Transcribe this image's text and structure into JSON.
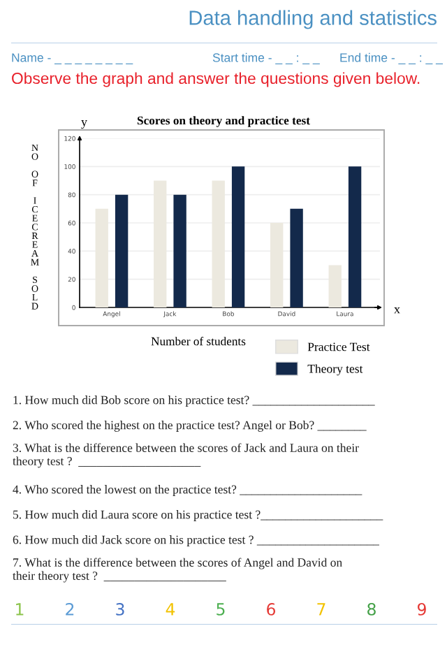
{
  "chart_data": {
    "type": "bar",
    "title": "Scores on theory and practice test",
    "xlabel": "Number of students",
    "ylabel": "NO OF ICECREAM SOLD",
    "categories": [
      "Angel",
      "Jack",
      "Bob",
      "David",
      "Laura"
    ],
    "series": [
      {
        "name": "Practice Test",
        "color": "#ece9df",
        "values": [
          70,
          90,
          90,
          60,
          30
        ]
      },
      {
        "name": "Theory test",
        "color": "#13294b",
        "values": [
          80,
          80,
          100,
          70,
          100
        ]
      }
    ],
    "ylim": [
      0,
      120
    ],
    "yticks": [
      0,
      20,
      40,
      60,
      80,
      100,
      120
    ],
    "grid": "y",
    "legend": "bottom right",
    "annotations": [
      "Data handling and statistics",
      "Name - _ _ _ _ _ _ _ _",
      "Start time - _ _ : _ _",
      "End time - _ _ : _ _",
      "Observe the graph and answer the questions given below.",
      "y",
      "x",
      "1. How much did Bob score on his practice test? ____________________",
      "2. Who scored the highest on the practice test? Angel or Bob? ________",
      "3. What is the difference between the scores of Jack and Laura on their\ntheory test ?  ____________________",
      "4. Who scored the lowest on the practice test? ____________________",
      "5. How much did Laura score on his practice test ?____________________",
      "6. How much did Jack score on his practice test ? ____________________",
      "7. What is the difference between the scores of Angel and David on\ntheir theory test ?  ____________________",
      "1",
      "2",
      "3",
      "4",
      "5",
      "6",
      "7",
      "8",
      "9"
    ]
  }
}
